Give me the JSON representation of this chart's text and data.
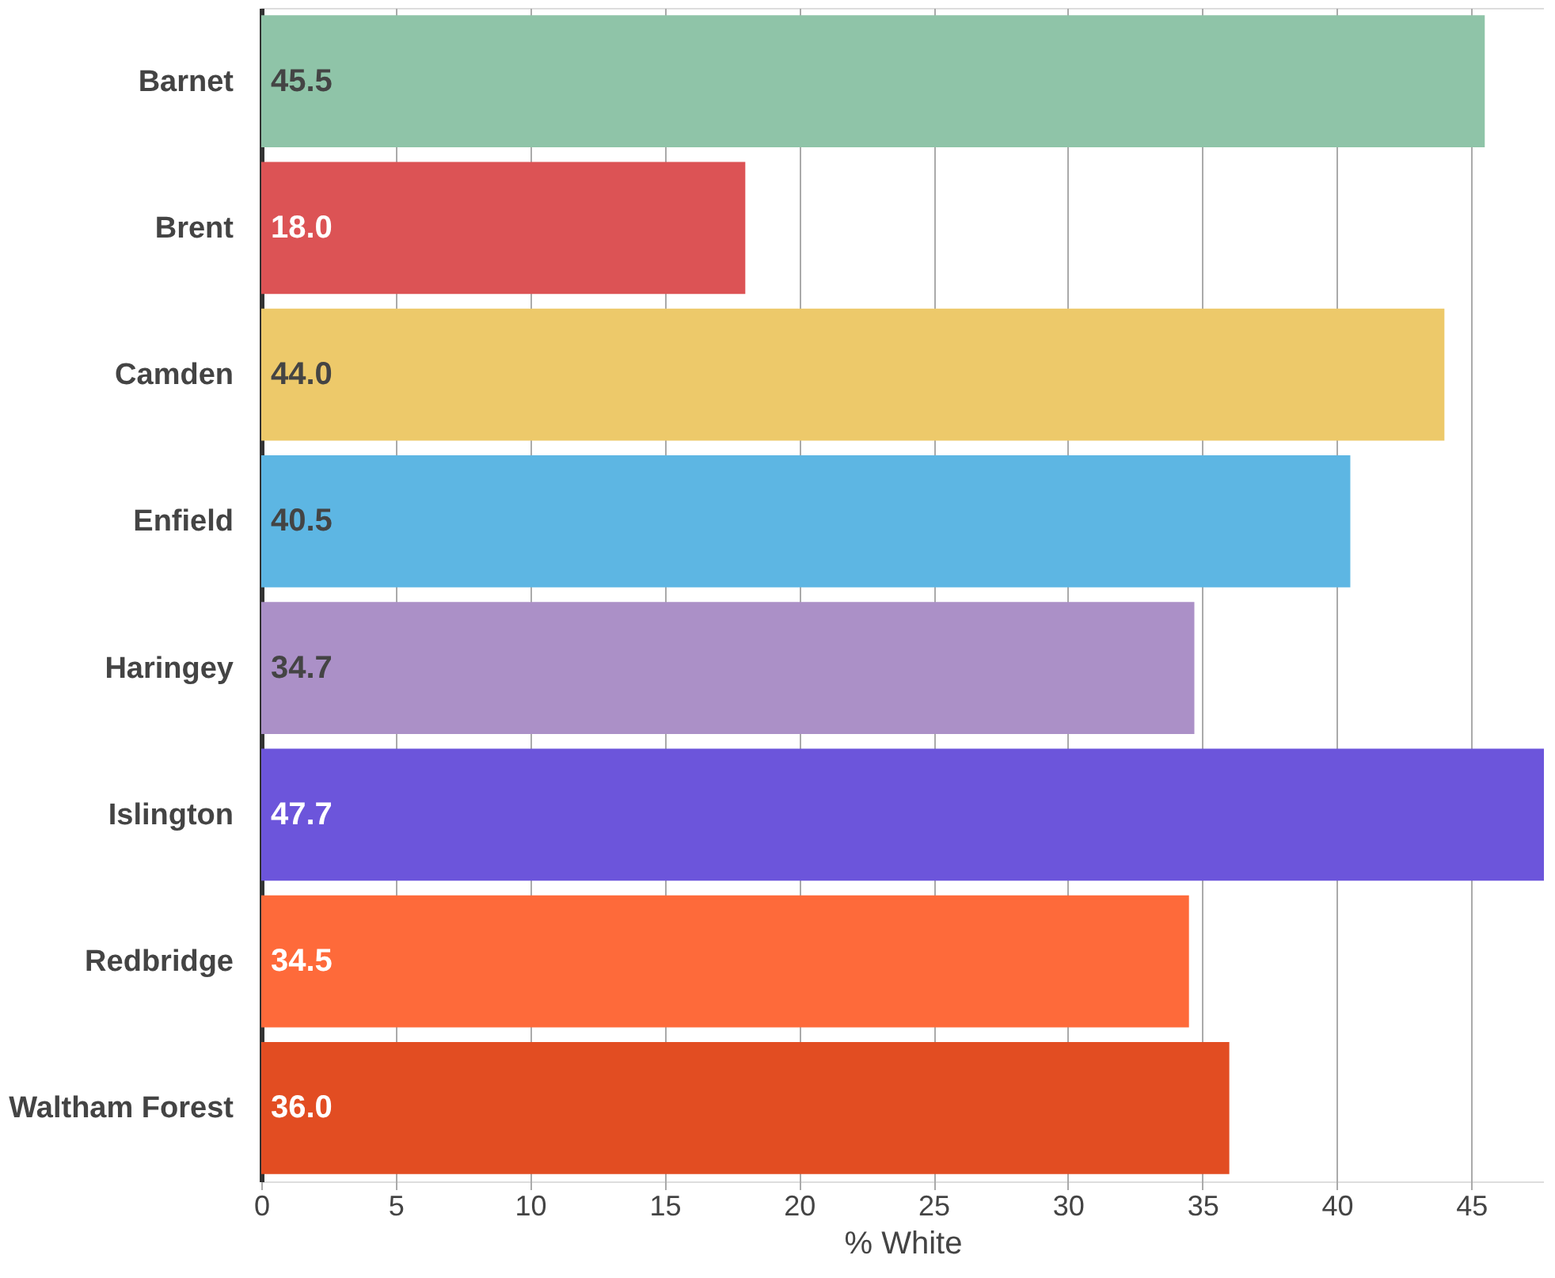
{
  "chart_data": {
    "type": "bar",
    "orientation": "horizontal",
    "xlabel": "% White",
    "categories": [
      "Barnet",
      "Brent",
      "Camden",
      "Enfield",
      "Haringey",
      "Islington",
      "Redbridge",
      "Waltham Forest"
    ],
    "values": [
      45.5,
      18.0,
      44.0,
      40.5,
      34.7,
      47.7,
      34.5,
      36.0
    ],
    "value_labels": [
      "45.5",
      "18.0",
      "44.0",
      "40.5",
      "34.7",
      "47.7",
      "34.5",
      "36.0"
    ],
    "colors": [
      "#8fc4a8",
      "#dc5355",
      "#edc96a",
      "#5db6e3",
      "#ab90c7",
      "#6c55db",
      "#fe6a3a",
      "#e24d22"
    ],
    "xlim": [
      0,
      47.7
    ],
    "xticks": [
      0,
      5,
      10,
      15,
      20,
      25,
      30,
      35,
      40,
      45
    ],
    "grid": "x"
  }
}
